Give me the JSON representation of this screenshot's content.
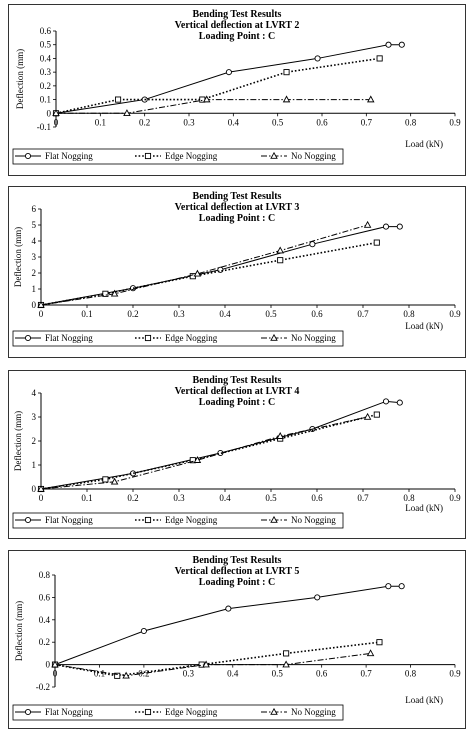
{
  "chart_data": [
    {
      "type": "line",
      "title": "Bending Test Results",
      "subtitle": "Vertical deflection at LVRT 2",
      "subtitle2": "Loading Point : C",
      "xlabel": "Load (kN)",
      "ylabel": "Deflection (mm)",
      "xlim": [
        0,
        0.9
      ],
      "ylim": [
        -0.1,
        0.6
      ],
      "x_ticks": [
        "0",
        "0.1",
        "0.2",
        "0.3",
        "0.4",
        "0.5",
        "0.6",
        "0.7",
        "0.8",
        "0.9"
      ],
      "y_ticks": [
        "-0.1",
        "0",
        "0.1",
        "0.2",
        "0.3",
        "0.4",
        "0.5",
        "0.6"
      ],
      "x_tick_values": [
        0,
        0.1,
        0.2,
        0.3,
        0.4,
        0.5,
        0.6,
        0.7,
        0.8,
        0.9
      ],
      "y_tick_values": [
        -0.1,
        0,
        0.1,
        0.2,
        0.3,
        0.4,
        0.5,
        0.6
      ],
      "grid": false,
      "legend": "bottom",
      "series": [
        {
          "name": "Flat Nogging",
          "marker": "circle",
          "dash": "solid",
          "x": [
            0,
            0.2,
            0.39,
            0.59,
            0.75,
            0.78
          ],
          "y": [
            0,
            0.1,
            0.3,
            0.4,
            0.5,
            0.5
          ]
        },
        {
          "name": "Edge Nogging",
          "marker": "square",
          "dash": "dotted",
          "x": [
            0,
            0.14,
            0.33,
            0.52,
            0.73
          ],
          "y": [
            0,
            0.1,
            0.1,
            0.3,
            0.4
          ]
        },
        {
          "name": "No Nogging",
          "marker": "triangle",
          "dash": "dashdot",
          "x": [
            0,
            0.16,
            0.34,
            0.52,
            0.71
          ],
          "y": [
            0,
            0,
            0.1,
            0.1,
            0.1
          ]
        }
      ]
    },
    {
      "type": "line",
      "title": "Bending Test Results",
      "subtitle": "Vertical deflection at LVRT 3",
      "subtitle2": "Loading Point : C",
      "xlabel": "Load (kN)",
      "ylabel": "Deflection (mm)",
      "xlim": [
        0,
        0.9
      ],
      "ylim": [
        0,
        6
      ],
      "x_ticks": [
        "0",
        "0.1",
        "0.2",
        "0.3",
        "0.4",
        "0.5",
        "0.6",
        "0.7",
        "0.8",
        "0.9"
      ],
      "y_ticks": [
        "0",
        "1",
        "2",
        "3",
        "4",
        "5",
        "6"
      ],
      "x_tick_values": [
        0,
        0.1,
        0.2,
        0.3,
        0.4,
        0.5,
        0.6,
        0.7,
        0.8,
        0.9
      ],
      "y_tick_values": [
        0,
        1,
        2,
        3,
        4,
        5,
        6
      ],
      "grid": false,
      "legend": "bottom",
      "series": [
        {
          "name": "Flat Nogging",
          "marker": "circle",
          "dash": "solid",
          "x": [
            0,
            0.2,
            0.39,
            0.59,
            0.75,
            0.78
          ],
          "y": [
            0,
            1.05,
            2.2,
            3.8,
            4.9,
            4.9
          ]
        },
        {
          "name": "Edge Nogging",
          "marker": "square",
          "dash": "dotted",
          "x": [
            0,
            0.14,
            0.33,
            0.52,
            0.73
          ],
          "y": [
            0,
            0.7,
            1.8,
            2.8,
            3.9
          ]
        },
        {
          "name": "No Nogging",
          "marker": "triangle",
          "dash": "dashdot",
          "x": [
            0,
            0.16,
            0.34,
            0.52,
            0.71
          ],
          "y": [
            0,
            0.7,
            1.95,
            3.4,
            5.0
          ]
        }
      ]
    },
    {
      "type": "line",
      "title": "Bending Test Results",
      "subtitle": "Vertical deflection at LVRT 4",
      "subtitle2": "Loading Point : C",
      "xlabel": "Load (kN)",
      "ylabel": "Deflection (mm)",
      "xlim": [
        0,
        0.9
      ],
      "ylim": [
        0,
        4
      ],
      "x_ticks": [
        "0",
        "0.1",
        "0.2",
        "0.3",
        "0.4",
        "0.5",
        "0.6",
        "0.7",
        "0.8",
        "0.9"
      ],
      "y_ticks": [
        "0",
        "1",
        "2",
        "3",
        "4"
      ],
      "x_tick_values": [
        0,
        0.1,
        0.2,
        0.3,
        0.4,
        0.5,
        0.6,
        0.7,
        0.8,
        0.9
      ],
      "y_tick_values": [
        0,
        1,
        2,
        3,
        4
      ],
      "grid": false,
      "legend": "bottom",
      "series": [
        {
          "name": "Flat Nogging",
          "marker": "circle",
          "dash": "solid",
          "x": [
            0,
            0.2,
            0.39,
            0.59,
            0.75,
            0.78
          ],
          "y": [
            0,
            0.65,
            1.5,
            2.5,
            3.65,
            3.6
          ]
        },
        {
          "name": "Edge Nogging",
          "marker": "square",
          "dash": "dotted",
          "x": [
            0,
            0.14,
            0.33,
            0.52,
            0.73
          ],
          "y": [
            0,
            0.4,
            1.2,
            2.1,
            3.1
          ]
        },
        {
          "name": "No Nogging",
          "marker": "triangle",
          "dash": "dashdot",
          "x": [
            0,
            0.16,
            0.34,
            0.52,
            0.71
          ],
          "y": [
            0,
            0.3,
            1.2,
            2.2,
            3.0
          ]
        }
      ]
    },
    {
      "type": "line",
      "title": "Bending Test Results",
      "subtitle": "Vertical deflection at LVRT 5",
      "subtitle2": "Loading Point : C",
      "xlabel": "Load (kN)",
      "ylabel": "Deflection (mm)",
      "xlim": [
        0,
        0.9
      ],
      "ylim": [
        -0.2,
        0.8
      ],
      "x_ticks": [
        "0",
        "0.1",
        "0.2",
        "0.3",
        "0.4",
        "0.5",
        "0.6",
        "0.7",
        "0.8",
        "0.9"
      ],
      "y_ticks": [
        "-0.2",
        "0",
        "0.2",
        "0.4",
        "0.6",
        "0.8"
      ],
      "x_tick_values": [
        0,
        0.1,
        0.2,
        0.3,
        0.4,
        0.5,
        0.6,
        0.7,
        0.8,
        0.9
      ],
      "y_tick_values": [
        -0.2,
        0,
        0.2,
        0.4,
        0.6,
        0.8
      ],
      "grid": false,
      "legend": "bottom",
      "series": [
        {
          "name": "Flat Nogging",
          "marker": "circle",
          "dash": "solid",
          "x": [
            0,
            0.2,
            0.39,
            0.59,
            0.75,
            0.78
          ],
          "y": [
            0,
            0.3,
            0.5,
            0.6,
            0.7,
            0.7
          ]
        },
        {
          "name": "Edge Nogging",
          "marker": "square",
          "dash": "dotted",
          "x": [
            0,
            0.14,
            0.33,
            0.52,
            0.73
          ],
          "y": [
            0,
            -0.1,
            0,
            0.1,
            0.2
          ]
        },
        {
          "name": "No Nogging",
          "marker": "triangle",
          "dash": "dashdot",
          "x": [
            0,
            0.16,
            0.34,
            0.52,
            0.71
          ],
          "y": [
            0,
            -0.1,
            0,
            0,
            0.1
          ]
        }
      ]
    }
  ]
}
